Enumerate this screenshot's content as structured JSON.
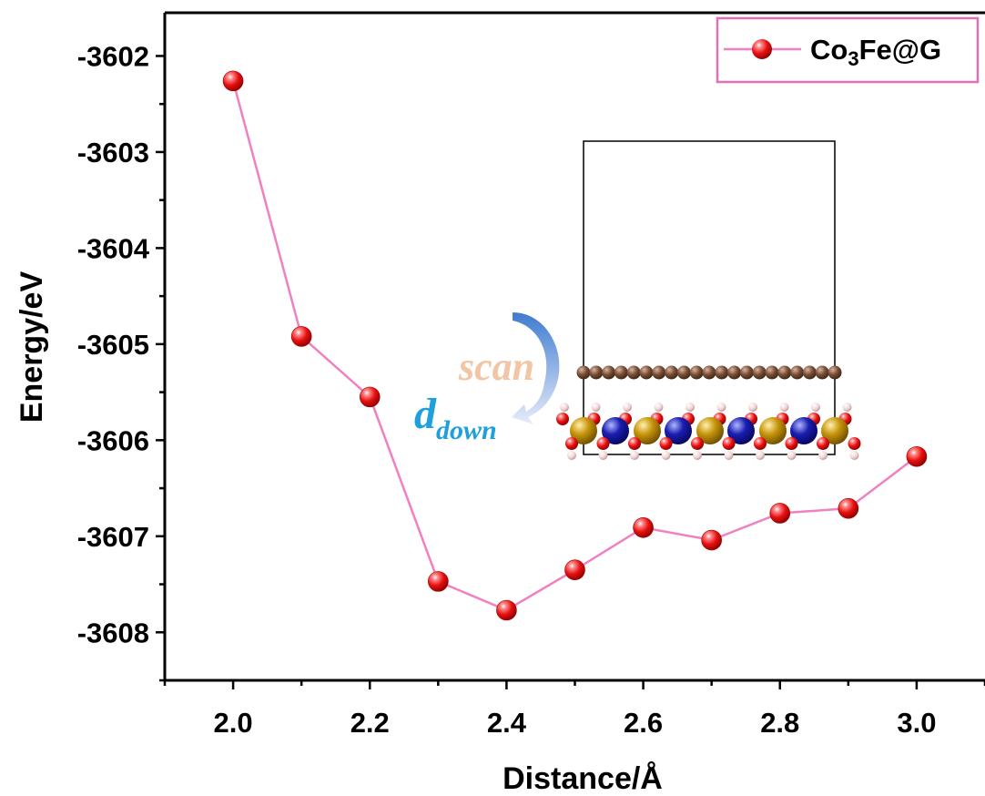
{
  "chart_data": {
    "type": "line",
    "xlabel": "Distance/Å",
    "ylabel": "Energy/eV",
    "xlim": [
      1.9,
      3.1
    ],
    "ylim": [
      -3608.5,
      -3601.55
    ],
    "xticks": [
      "2.0",
      "2.2",
      "2.4",
      "2.6",
      "2.8",
      "3.0"
    ],
    "yticks": [
      "-3602",
      "-3603",
      "-3604",
      "-3605",
      "-3606",
      "-3607",
      "-3608"
    ],
    "grid": false,
    "legend_position": "top-right",
    "series": [
      {
        "name": "Co3Fe@G",
        "x": [
          2.0,
          2.1,
          2.2,
          2.3,
          2.4,
          2.5,
          2.6,
          2.7,
          2.8,
          2.9,
          3.0
        ],
        "y": [
          -3602.26,
          -3604.92,
          -3605.55,
          -3607.47,
          -3607.77,
          -3607.35,
          -3606.91,
          -3607.04,
          -3606.76,
          -3606.71,
          -3606.17
        ],
        "line_color": "#f080c0",
        "marker_color": "#ee1111"
      }
    ],
    "legend": {
      "label_main": "Co",
      "label_sub": "3",
      "label_tail": "Fe@G",
      "border_color": "#e070b8"
    },
    "inset": {
      "label_scan": "scan",
      "label_d": "d",
      "label_d_sub": "down",
      "scan_color": "#f2c6a4",
      "d_color": "#1f9fdc",
      "arrow_color": "#4a84d0"
    }
  }
}
